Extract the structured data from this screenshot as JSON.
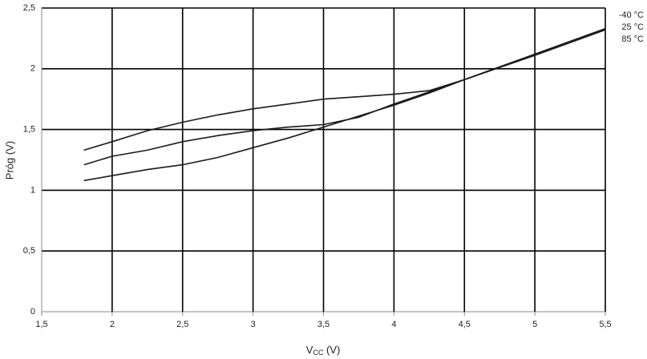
{
  "chart_data": {
    "type": "line",
    "ylabel": "Próg (V)",
    "xlabel": [
      "V",
      "CC",
      " (V)"
    ],
    "x": [
      1.8,
      2.0,
      2.25,
      2.5,
      2.75,
      3.0,
      3.25,
      3.5,
      3.75,
      4.0,
      4.25,
      4.5,
      5.0,
      5.5
    ],
    "series": [
      {
        "name": "-40 °C",
        "color": "#1a1a1a",
        "values": [
          1.33,
          1.4,
          1.49,
          1.56,
          1.62,
          1.67,
          1.71,
          1.75,
          1.77,
          1.79,
          1.82,
          1.91,
          2.12,
          2.33
        ]
      },
      {
        "name": "25 °C",
        "color": "#1a1a1a",
        "values": [
          1.21,
          1.28,
          1.33,
          1.4,
          1.45,
          1.49,
          1.52,
          1.54,
          1.6,
          1.71,
          1.81,
          1.91,
          2.12,
          2.33
        ]
      },
      {
        "name": "85 °C",
        "color": "#1a1a1a",
        "values": [
          1.08,
          1.12,
          1.17,
          1.21,
          1.27,
          1.35,
          1.43,
          1.52,
          1.61,
          1.7,
          1.8,
          1.91,
          2.11,
          2.32
        ]
      }
    ],
    "xlim": [
      1.5,
      5.5
    ],
    "ylim": [
      0,
      2.5
    ],
    "xticks": [
      {
        "value": 1.5,
        "label": "1,5"
      },
      2,
      {
        "value": 2.5,
        "label": "2,5"
      },
      3,
      {
        "value": 3.5,
        "label": "3,5"
      },
      4,
      {
        "value": 4.5,
        "label": "4,5"
      },
      5,
      {
        "value": 5.5,
        "label": "5,5"
      }
    ],
    "yticks": [
      0,
      {
        "value": 0.5,
        "label": "0,5"
      },
      1,
      {
        "value": 1.5,
        "label": "1,5"
      },
      2,
      {
        "value": 2.5,
        "label": "2,5"
      }
    ],
    "grid": true
  }
}
